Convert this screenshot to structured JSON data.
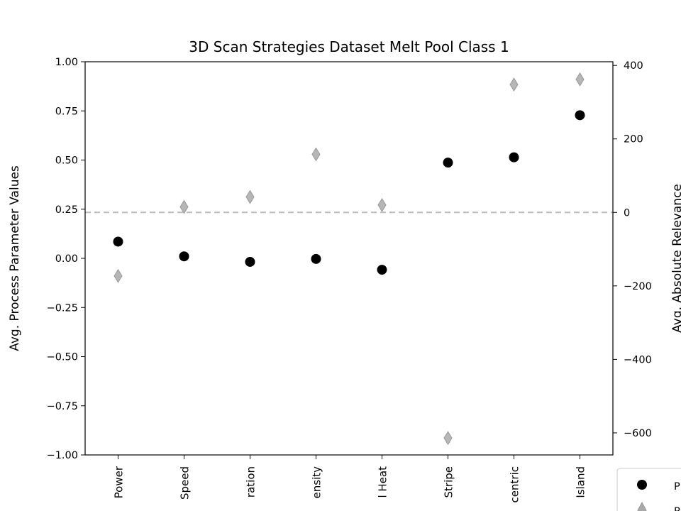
{
  "chart_data": {
    "type": "scatter",
    "title": "3D Scan Strategies Dataset Melt Pool Class 1",
    "ylabel": "Avg. Process Parameter Values",
    "y2label": "Avg. Absolute Relevance",
    "ylim": [
      -1.0,
      1.0
    ],
    "y2lim": [
      -660,
      410
    ],
    "yticks": [
      "1.00",
      "0.75",
      "0.50",
      "0.25",
      "0.00",
      "−0.25",
      "−0.50",
      "−0.75",
      "−1.00"
    ],
    "y2ticks": [
      "400",
      "200",
      "0",
      "−200",
      "−400",
      "−600"
    ],
    "categories": [
      "Power",
      "Speed",
      "ration",
      "ensity",
      "l Heat",
      "Stripe",
      "centric",
      "Island"
    ],
    "series": [
      {
        "marker": "circle",
        "color": "#000000",
        "axis": "left",
        "values": [
          0.085,
          0.01,
          -0.018,
          -0.003,
          -0.058,
          0.487,
          0.514,
          0.728
        ]
      },
      {
        "marker": "diamond",
        "color": "#a9a9a9",
        "axis": "right",
        "values": [
          -173,
          15,
          42,
          158,
          20,
          -614,
          348,
          362
        ]
      }
    ],
    "reference_line": {
      "axis": "right",
      "value": 0,
      "style": "dashed",
      "color": "#bbbbbb"
    },
    "legend": {
      "placement": "bottom-right",
      "entries": [
        "P",
        "R"
      ]
    }
  }
}
